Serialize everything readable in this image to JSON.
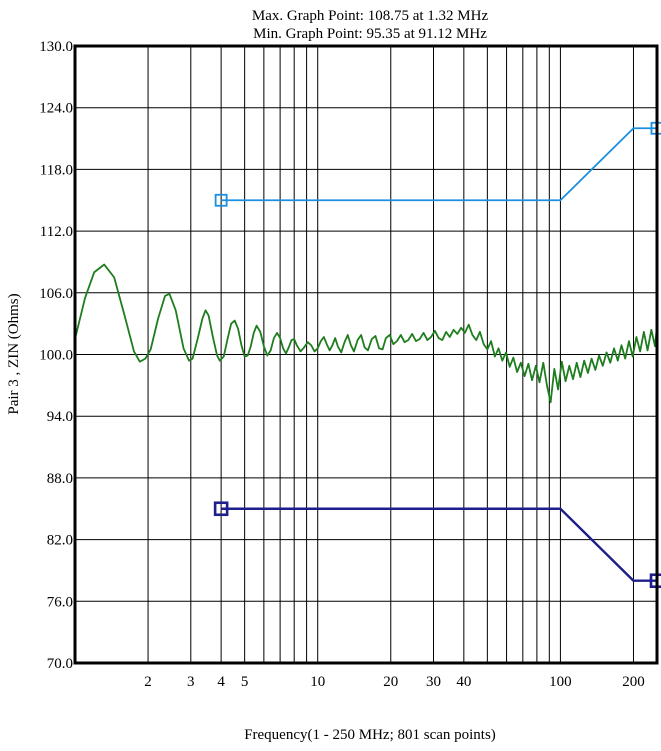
{
  "chart_data": {
    "type": "line",
    "title_lines": [
      "Max. Graph Point: 108.75 at 1.32 MHz",
      "Min. Graph Point: 95.35 at 91.12 MHz"
    ],
    "xlabel": "Frequency(1 - 250 MHz; 801 scan points)",
    "ylabel": "Pair 3 , ZIN (Ohms)",
    "x_scale": "log",
    "xlim": [
      1,
      250
    ],
    "ylim": [
      70,
      130
    ],
    "grid": true,
    "y_ticks": [
      {
        "value": 70,
        "label": "70.0"
      },
      {
        "value": 76,
        "label": "76.0"
      },
      {
        "value": 82,
        "label": "82.0"
      },
      {
        "value": 88,
        "label": "88.0"
      },
      {
        "value": 94,
        "label": "94.0"
      },
      {
        "value": 100,
        "label": "100.0"
      },
      {
        "value": 106,
        "label": "106.0"
      },
      {
        "value": 112,
        "label": "112.0"
      },
      {
        "value": 118,
        "label": "118.0"
      },
      {
        "value": 124,
        "label": "124.0"
      },
      {
        "value": 130,
        "label": "130.0"
      }
    ],
    "x_tick_labels": [
      {
        "value": 2,
        "label": "2"
      },
      {
        "value": 3,
        "label": "3"
      },
      {
        "value": 4,
        "label": "4"
      },
      {
        "value": 5,
        "label": "5"
      },
      {
        "value": 10,
        "label": "10"
      },
      {
        "value": 20,
        "label": "20"
      },
      {
        "value": 30,
        "label": "30"
      },
      {
        "value": 40,
        "label": "40"
      },
      {
        "value": 100,
        "label": "100"
      },
      {
        "value": 200,
        "label": "200"
      }
    ],
    "x_grid": [
      2,
      3,
      4,
      5,
      6,
      7,
      8,
      9,
      10,
      20,
      30,
      40,
      50,
      60,
      70,
      80,
      90,
      100,
      200
    ],
    "series": [
      {
        "color": "#1a8fe0",
        "marker": "square",
        "points": [
          [
            4,
            115
          ],
          [
            100,
            115
          ],
          [
            200,
            122
          ],
          [
            250,
            122
          ]
        ],
        "marker_points": [
          [
            4,
            115
          ],
          [
            250,
            122
          ]
        ]
      },
      {
        "color": "#1e1e8c",
        "marker": "square",
        "points": [
          [
            4,
            85
          ],
          [
            100,
            85
          ],
          [
            200,
            78
          ],
          [
            250,
            78
          ]
        ],
        "marker_points": [
          [
            4,
            85
          ],
          [
            250,
            78
          ]
        ]
      },
      {
        "color": "#1e7d1e",
        "marker": "none",
        "measurement": true,
        "start": 101.5,
        "points": [
          [
            1.0,
            101.5
          ],
          [
            1.1,
            105.5
          ],
          [
            1.2,
            108.0
          ],
          [
            1.32,
            108.75
          ],
          [
            1.45,
            107.5
          ],
          [
            1.6,
            103.8
          ],
          [
            1.75,
            100.3
          ],
          [
            1.85,
            99.3
          ],
          [
            1.95,
            99.6
          ],
          [
            2.05,
            100.5
          ],
          [
            2.2,
            103.5
          ],
          [
            2.35,
            105.7
          ],
          [
            2.45,
            105.9
          ],
          [
            2.6,
            104.3
          ],
          [
            2.8,
            100.6
          ],
          [
            2.95,
            99.4
          ],
          [
            3.05,
            99.6
          ],
          [
            3.2,
            101.5
          ],
          [
            3.35,
            103.5
          ],
          [
            3.45,
            104.3
          ],
          [
            3.55,
            103.8
          ],
          [
            3.7,
            101.7
          ],
          [
            3.85,
            99.9
          ],
          [
            3.95,
            99.4
          ],
          [
            4.1,
            99.8
          ],
          [
            4.25,
            101.5
          ],
          [
            4.4,
            103.0
          ],
          [
            4.55,
            103.3
          ],
          [
            4.7,
            102.5
          ],
          [
            4.85,
            100.9
          ],
          [
            5.0,
            99.8
          ],
          [
            5.15,
            99.9
          ],
          [
            5.3,
            100.8
          ],
          [
            5.45,
            102.1
          ],
          [
            5.6,
            102.8
          ],
          [
            5.8,
            102.2
          ],
          [
            6.0,
            100.8
          ],
          [
            6.2,
            99.9
          ],
          [
            6.4,
            100.4
          ],
          [
            6.6,
            101.6
          ],
          [
            6.8,
            102.1
          ],
          [
            7.0,
            101.6
          ],
          [
            7.2,
            100.6
          ],
          [
            7.4,
            100.1
          ],
          [
            7.6,
            100.7
          ],
          [
            7.8,
            101.4
          ],
          [
            8.0,
            101.5
          ],
          [
            8.2,
            100.9
          ],
          [
            8.5,
            100.3
          ],
          [
            8.8,
            100.7
          ],
          [
            9.1,
            101.2
          ],
          [
            9.4,
            100.9
          ],
          [
            9.7,
            100.3
          ],
          [
            10.0,
            100.6
          ],
          [
            10.3,
            101.3
          ],
          [
            10.6,
            101.7
          ],
          [
            10.9,
            101.0
          ],
          [
            11.2,
            100.4
          ],
          [
            11.5,
            100.9
          ],
          [
            11.8,
            101.6
          ],
          [
            12.1,
            100.8
          ],
          [
            12.5,
            100.2
          ],
          [
            12.9,
            101.2
          ],
          [
            13.3,
            101.9
          ],
          [
            13.7,
            100.9
          ],
          [
            14.1,
            100.3
          ],
          [
            14.6,
            101.4
          ],
          [
            15.1,
            101.9
          ],
          [
            15.6,
            100.7
          ],
          [
            16.1,
            100.4
          ],
          [
            16.7,
            101.5
          ],
          [
            17.3,
            101.8
          ],
          [
            17.9,
            100.6
          ],
          [
            18.5,
            100.5
          ],
          [
            19.1,
            101.6
          ],
          [
            19.8,
            101.9
          ],
          [
            20.5,
            101.0
          ],
          [
            21.2,
            101.3
          ],
          [
            22.0,
            101.9
          ],
          [
            22.8,
            101.2
          ],
          [
            23.6,
            101.4
          ],
          [
            24.5,
            102.0
          ],
          [
            25.4,
            101.3
          ],
          [
            26.3,
            101.5
          ],
          [
            27.3,
            102.1
          ],
          [
            28.3,
            101.4
          ],
          [
            29.3,
            101.7
          ],
          [
            30.4,
            102.3
          ],
          [
            31.5,
            101.6
          ],
          [
            32.6,
            101.4
          ],
          [
            33.8,
            102.2
          ],
          [
            35.0,
            101.7
          ],
          [
            36.3,
            102.4
          ],
          [
            37.6,
            102.0
          ],
          [
            39.0,
            102.6
          ],
          [
            40.4,
            102.1
          ],
          [
            41.9,
            102.9
          ],
          [
            43.4,
            101.9
          ],
          [
            45.0,
            101.4
          ],
          [
            46.6,
            102.2
          ],
          [
            48.3,
            101.0
          ],
          [
            50.0,
            100.5
          ],
          [
            51.8,
            101.3
          ],
          [
            53.7,
            99.8
          ],
          [
            55.6,
            100.6
          ],
          [
            57.6,
            99.4
          ],
          [
            59.7,
            100.2
          ],
          [
            61.8,
            98.8
          ],
          [
            64.0,
            99.7
          ],
          [
            66.3,
            98.3
          ],
          [
            68.7,
            99.2
          ],
          [
            71.2,
            97.9
          ],
          [
            73.8,
            99.1
          ],
          [
            76.4,
            97.5
          ],
          [
            79.2,
            98.9
          ],
          [
            82.0,
            97.3
          ],
          [
            85.0,
            99.2
          ],
          [
            88.0,
            97.0
          ],
          [
            91.12,
            95.35
          ],
          [
            94.4,
            98.6
          ],
          [
            97.8,
            96.6
          ],
          [
            101.3,
            99.3
          ],
          [
            105.0,
            97.4
          ],
          [
            108.8,
            98.9
          ],
          [
            112.7,
            97.6
          ],
          [
            116.7,
            99.2
          ],
          [
            120.9,
            97.8
          ],
          [
            125.3,
            99.4
          ],
          [
            129.8,
            98.2
          ],
          [
            134.4,
            99.6
          ],
          [
            139.3,
            98.5
          ],
          [
            144.3,
            99.9
          ],
          [
            149.5,
            98.9
          ],
          [
            154.9,
            100.2
          ],
          [
            160.5,
            99.2
          ],
          [
            166.3,
            100.6
          ],
          [
            172.3,
            99.4
          ],
          [
            178.5,
            100.9
          ],
          [
            184.9,
            99.6
          ],
          [
            191.6,
            101.3
          ],
          [
            198.5,
            99.8
          ],
          [
            205.6,
            101.7
          ],
          [
            213.0,
            100.3
          ],
          [
            220.7,
            102.2
          ],
          [
            228.6,
            100.4
          ],
          [
            236.9,
            102.4
          ],
          [
            245.4,
            100.8
          ],
          [
            250.0,
            102.8
          ]
        ]
      }
    ]
  }
}
